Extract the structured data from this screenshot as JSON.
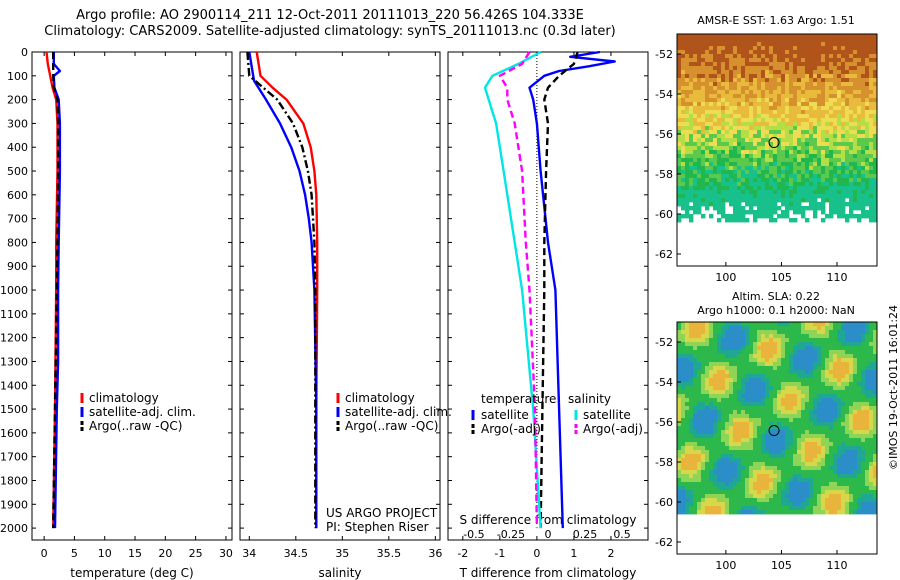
{
  "header": {
    "title_line1": "Argo profile: AO 2900114_211 12-Oct-2011 20111013_220 56.426S 104.333E",
    "title_line2": "Climatology: CARS2009. Satellite-adjusted climatology: synTS_20111013.nc (0.3d later)"
  },
  "maps": {
    "sst_title": "AMSR-E SST: 1.63 Argo: 1.51",
    "sla_title1": "Altim. SLA: 0.22",
    "sla_title2": "Argo h1000: 0.1 h2000: NaN",
    "lon_ticks": [
      "100",
      "105",
      "110"
    ],
    "lat_ticks_sst": [
      "-52",
      "-54",
      "-56",
      "-58",
      "-60",
      "-62"
    ],
    "lat_ticks_sla": [
      "-52",
      "-54",
      "-56",
      "-58",
      "-60",
      "-62"
    ],
    "float_lon": 104.333,
    "float_lat": -56.426
  },
  "credit": "©IMOS 19-Oct-2011 16:01:24",
  "annotations": {
    "project": "US ARGO PROJECT",
    "pi": "PI: Stephen Riser"
  },
  "chart_data": [
    {
      "type": "line",
      "name": "temperature",
      "xlabel": "temperature (deg C)",
      "ylabel": "",
      "xlim": [
        -2,
        31
      ],
      "ylim": [
        2050,
        0
      ],
      "xticks": [
        "0",
        "5",
        "10",
        "15",
        "20",
        "25",
        "30"
      ],
      "yticks": [
        "0",
        "100",
        "200",
        "300",
        "400",
        "500",
        "600",
        "700",
        "800",
        "900",
        "1000",
        "1100",
        "1200",
        "1300",
        "1400",
        "1500",
        "1600",
        "1700",
        "1800",
        "1900",
        "2000"
      ],
      "legend": [
        "climatology",
        "satellite-adj. clim.",
        "Argo(..raw -QC)"
      ],
      "legend_colors": [
        "#ff0000",
        "#0000ff",
        "#000000"
      ],
      "series": [
        {
          "color": "#ff0000",
          "style": "solid",
          "depth": [
            0,
            50,
            100,
            150,
            200,
            300,
            500,
            800,
            1000,
            1500,
            2000
          ],
          "values": [
            0.4,
            0.6,
            1.0,
            1.4,
            2.0,
            2.2,
            2.2,
            2.0,
            2.0,
            1.8,
            1.5
          ]
        },
        {
          "color": "#0000ff",
          "style": "solid",
          "depth": [
            0,
            50,
            80,
            100,
            150,
            200,
            300,
            500,
            800,
            1000,
            1300,
            1500,
            2000
          ],
          "values": [
            1.6,
            1.6,
            2.6,
            1.6,
            1.7,
            2.4,
            2.6,
            2.6,
            2.4,
            2.3,
            2.3,
            2.1,
            1.8
          ]
        },
        {
          "color": "#000000",
          "style": "dashed",
          "depth": [
            0,
            50,
            100,
            150,
            200,
            300,
            500,
            800,
            1000,
            1500,
            2000
          ],
          "values": [
            1.5,
            1.5,
            1.5,
            1.6,
            2.2,
            2.3,
            2.3,
            2.2,
            2.1,
            1.8,
            1.5
          ]
        }
      ]
    },
    {
      "type": "line",
      "name": "salinity",
      "xlabel": "salinity",
      "ylabel": "",
      "xlim": [
        33.9,
        36.05
      ],
      "ylim": [
        2050,
        0
      ],
      "xticks": [
        "34",
        "34.5",
        "35",
        "35.5",
        "36"
      ],
      "legend": [
        "climatology",
        "satellite-adj. clim.",
        "Argo(..raw -QC)"
      ],
      "legend_colors": [
        "#ff0000",
        "#0000ff",
        "#000000"
      ],
      "series": [
        {
          "color": "#ff0000",
          "style": "solid",
          "depth": [
            0,
            100,
            150,
            200,
            300,
            400,
            500,
            600,
            800,
            1000,
            1500,
            2000
          ],
          "values": [
            34.08,
            34.12,
            34.25,
            34.4,
            34.58,
            34.66,
            34.7,
            34.72,
            34.73,
            34.73,
            34.72,
            34.72
          ]
        },
        {
          "color": "#0000ff",
          "style": "solid",
          "depth": [
            0,
            120,
            200,
            300,
            400,
            500,
            600,
            700,
            800,
            1000,
            1500,
            2000
          ],
          "values": [
            34.0,
            34.05,
            34.18,
            34.33,
            34.45,
            34.54,
            34.6,
            34.64,
            34.67,
            34.7,
            34.72,
            34.72
          ]
        },
        {
          "color": "#000000",
          "style": "dashdot",
          "depth": [
            0,
            100,
            150,
            200,
            300,
            400,
            500,
            600,
            800,
            1000,
            1500,
            2000
          ],
          "values": [
            33.98,
            34.0,
            34.15,
            34.3,
            34.47,
            34.57,
            34.63,
            34.67,
            34.7,
            34.71,
            34.71,
            34.71
          ]
        }
      ]
    },
    {
      "type": "line",
      "name": "difference",
      "xlabel": "T difference from climatology",
      "xlabel2": "S difference from climatology",
      "ylabel": "",
      "xlim": [
        -2.4,
        3.0
      ],
      "ylim": [
        2050,
        0
      ],
      "xticks": [
        "-2",
        "-1",
        "0",
        "1",
        "2"
      ],
      "xticks2": [
        "-0.5",
        "-0.25",
        "0",
        "0.25",
        "0.5"
      ],
      "legend_temperature_title": "temperature",
      "legend_salinity_title": "salinity",
      "legend_temperature": [
        "satellite",
        "Argo(-adj)"
      ],
      "legend_salinity": [
        "satellite",
        "Argo(-adj)"
      ],
      "series": [
        {
          "color": "#0000ff",
          "style": "solid",
          "group": "temperature",
          "label": "satellite",
          "depth": [
            0,
            20,
            40,
            60,
            80,
            100,
            150,
            200,
            300,
            500,
            800,
            1000,
            1500,
            2000
          ],
          "values": [
            1.7,
            0.9,
            2.1,
            1.4,
            0.6,
            0.2,
            -0.2,
            -0.1,
            0.0,
            0.1,
            0.3,
            0.5,
            0.6,
            0.7
          ]
        },
        {
          "color": "#000000",
          "style": "dashed",
          "group": "temperature",
          "label": "Argo(-adj)",
          "depth": [
            0,
            50,
            100,
            150,
            200,
            300,
            500,
            800,
            1000,
            1500,
            2000
          ],
          "values": [
            1.1,
            1.0,
            0.6,
            0.3,
            0.2,
            0.3,
            0.25,
            0.2,
            0.2,
            0.15,
            0.1
          ]
        },
        {
          "color": "#00e5e5",
          "style": "solid",
          "group": "salinity",
          "label": "satellite",
          "depth": [
            0,
            50,
            100,
            150,
            200,
            300,
            500,
            800,
            1000,
            1500,
            2000
          ],
          "values": [
            0.1,
            -0.5,
            -1.2,
            -1.4,
            -1.3,
            -1.1,
            -0.9,
            -0.6,
            -0.4,
            -0.1,
            0.1
          ]
        },
        {
          "color": "#ff00ff",
          "style": "dashed",
          "group": "salinity",
          "label": "Argo(-adj)",
          "depth": [
            0,
            50,
            100,
            150,
            200,
            300,
            500,
            800,
            1000,
            1500,
            2000
          ],
          "values": [
            -0.2,
            -0.4,
            -1.0,
            -0.8,
            -0.8,
            -0.6,
            -0.4,
            -0.3,
            -0.2,
            -0.05,
            0.0
          ]
        }
      ]
    }
  ]
}
